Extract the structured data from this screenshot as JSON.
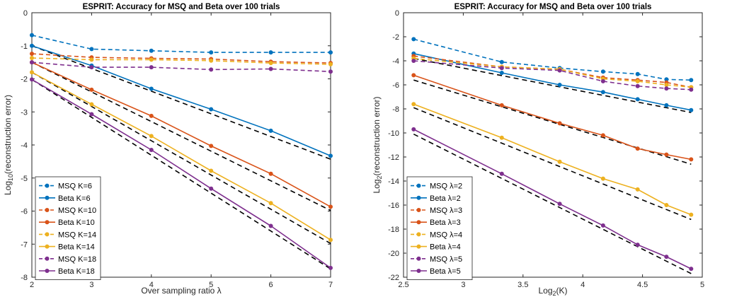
{
  "chart_data": [
    {
      "type": "line",
      "title": "ESPRIT: Accuracy for MSQ and Beta over 100 trials",
      "xlabel": "Over sampling ratio λ",
      "ylabel": {
        "prefix": "Log",
        "sub": "10",
        "suffix": "(reconstruction error)"
      },
      "xlim": [
        2,
        7
      ],
      "ylim": [
        -8,
        0
      ],
      "xticks": [
        2,
        3,
        4,
        5,
        6,
        7
      ],
      "yticks": [
        -8,
        -7,
        -6,
        -5,
        -4,
        -3,
        -2,
        -1,
        0
      ],
      "legend_position": "bottom-left",
      "series": [
        {
          "name": "MSQ K=6",
          "color": "#0072BD",
          "dashed": true,
          "x": [
            2,
            3,
            4,
            5,
            6,
            7
          ],
          "y": [
            -0.68,
            -1.1,
            -1.15,
            -1.2,
            -1.2,
            -1.2
          ]
        },
        {
          "name": "Beta K=6",
          "color": "#0072BD",
          "dashed": false,
          "x": [
            2,
            3,
            4,
            5,
            6,
            7
          ],
          "y": [
            -1.0,
            -1.6,
            -2.3,
            -2.92,
            -3.57,
            -4.33
          ]
        },
        {
          "name": "MSQ K=10",
          "color": "#D95319",
          "dashed": true,
          "x": [
            2,
            3,
            4,
            5,
            6,
            7
          ],
          "y": [
            -1.24,
            -1.35,
            -1.38,
            -1.4,
            -1.48,
            -1.52
          ]
        },
        {
          "name": "Beta K=10",
          "color": "#D95319",
          "dashed": false,
          "x": [
            2,
            3,
            4,
            5,
            6,
            7
          ],
          "y": [
            -1.5,
            -2.33,
            -3.12,
            -4.03,
            -4.87,
            -5.87
          ]
        },
        {
          "name": "MSQ K=14",
          "color": "#EDB120",
          "dashed": true,
          "x": [
            2,
            3,
            4,
            5,
            6,
            7
          ],
          "y": [
            -1.37,
            -1.42,
            -1.42,
            -1.45,
            -1.52,
            -1.56
          ]
        },
        {
          "name": "Beta K=14",
          "color": "#EDB120",
          "dashed": false,
          "x": [
            2,
            3,
            4,
            5,
            6,
            7
          ],
          "y": [
            -1.8,
            -2.77,
            -3.73,
            -4.78,
            -5.76,
            -6.87
          ]
        },
        {
          "name": "MSQ K=18",
          "color": "#7E2F8E",
          "dashed": true,
          "x": [
            2,
            3,
            4,
            5,
            6,
            7
          ],
          "y": [
            -1.5,
            -1.65,
            -1.65,
            -1.72,
            -1.7,
            -1.78
          ]
        },
        {
          "name": "Beta K=18",
          "color": "#7E2F8E",
          "dashed": false,
          "x": [
            2,
            3,
            4,
            5,
            6,
            7
          ],
          "y": [
            -2.02,
            -3.07,
            -4.15,
            -5.32,
            -6.45,
            -7.72
          ]
        }
      ],
      "reference_lines": [
        {
          "x": [
            2,
            7
          ],
          "y": [
            -1.0,
            -4.43
          ]
        },
        {
          "x": [
            2,
            7
          ],
          "y": [
            -1.5,
            -5.98
          ]
        },
        {
          "x": [
            2,
            7
          ],
          "y": [
            -1.8,
            -6.98
          ]
        },
        {
          "x": [
            2,
            7
          ],
          "y": [
            -2.02,
            -7.75
          ]
        }
      ]
    },
    {
      "type": "line",
      "title": "ESPRIT: Accuracy for MSQ and Beta over 100 trials",
      "xlabel": {
        "prefix": "Log",
        "sub": "2",
        "suffix": "(K)"
      },
      "ylabel": {
        "prefix": "Log",
        "sub": "2",
        "suffix": "(reconstruction error)"
      },
      "xlim": [
        2.5,
        5
      ],
      "ylim": [
        -22,
        0
      ],
      "xticks": [
        2.5,
        3,
        3.5,
        4,
        4.5,
        5
      ],
      "yticks": [
        -22,
        -20,
        -18,
        -16,
        -14,
        -12,
        -10,
        -8,
        -6,
        -4,
        -2,
        0
      ],
      "legend_position": "bottom-left",
      "series": [
        {
          "name": "MSQ λ=2",
          "color": "#0072BD",
          "dashed": true,
          "x": [
            2.585,
            3.322,
            3.807,
            4.17,
            4.459,
            4.7,
            4.907
          ],
          "y": [
            -2.2,
            -4.1,
            -4.6,
            -4.9,
            -5.1,
            -5.55,
            -5.6
          ]
        },
        {
          "name": "Beta λ=2",
          "color": "#0072BD",
          "dashed": false,
          "x": [
            2.585,
            3.322,
            3.807,
            4.17,
            4.459,
            4.7,
            4.907
          ],
          "y": [
            -3.4,
            -5.0,
            -6.0,
            -6.6,
            -7.2,
            -7.7,
            -8.1
          ]
        },
        {
          "name": "MSQ λ=3",
          "color": "#D95319",
          "dashed": true,
          "x": [
            2.585,
            3.322,
            3.807,
            4.17,
            4.459,
            4.7,
            4.907
          ],
          "y": [
            -3.6,
            -4.5,
            -4.7,
            -5.4,
            -5.6,
            -5.8,
            -6.2
          ]
        },
        {
          "name": "Beta λ=3",
          "color": "#D95319",
          "dashed": false,
          "x": [
            2.585,
            3.322,
            3.807,
            4.17,
            4.459,
            4.7,
            4.907
          ],
          "y": [
            -5.2,
            -7.7,
            -9.2,
            -10.2,
            -11.3,
            -11.8,
            -12.2
          ]
        },
        {
          "name": "MSQ λ=4",
          "color": "#EDB120",
          "dashed": true,
          "x": [
            2.585,
            3.322,
            3.807,
            4.17,
            4.459,
            4.7,
            4.907
          ],
          "y": [
            -3.8,
            -4.5,
            -4.7,
            -5.5,
            -5.7,
            -6.0,
            -6.2
          ]
        },
        {
          "name": "Beta λ=4",
          "color": "#EDB120",
          "dashed": false,
          "x": [
            2.585,
            3.322,
            3.807,
            4.17,
            4.459,
            4.7,
            4.907
          ],
          "y": [
            -7.6,
            -10.4,
            -12.4,
            -13.8,
            -14.7,
            -16.0,
            -16.8
          ]
        },
        {
          "name": "MSQ λ=5",
          "color": "#7E2F8E",
          "dashed": true,
          "x": [
            2.585,
            3.322,
            3.807,
            4.17,
            4.459,
            4.7,
            4.907
          ],
          "y": [
            -4.0,
            -4.6,
            -4.8,
            -5.7,
            -6.1,
            -6.3,
            -6.4
          ]
        },
        {
          "name": "Beta λ=5",
          "color": "#7E2F8E",
          "dashed": false,
          "x": [
            2.585,
            3.322,
            3.807,
            4.17,
            4.459,
            4.7,
            4.907
          ],
          "y": [
            -9.7,
            -13.4,
            -15.9,
            -17.7,
            -19.3,
            -20.3,
            -21.3
          ]
        }
      ],
      "reference_lines": [
        {
          "x": [
            2.585,
            4.907
          ],
          "y": [
            -3.8,
            -8.3
          ]
        },
        {
          "x": [
            2.585,
            4.907
          ],
          "y": [
            -5.6,
            -12.6
          ]
        },
        {
          "x": [
            2.585,
            4.907
          ],
          "y": [
            -7.9,
            -17.2
          ]
        },
        {
          "x": [
            2.585,
            4.907
          ],
          "y": [
            -10.1,
            -21.7
          ]
        }
      ]
    }
  ]
}
